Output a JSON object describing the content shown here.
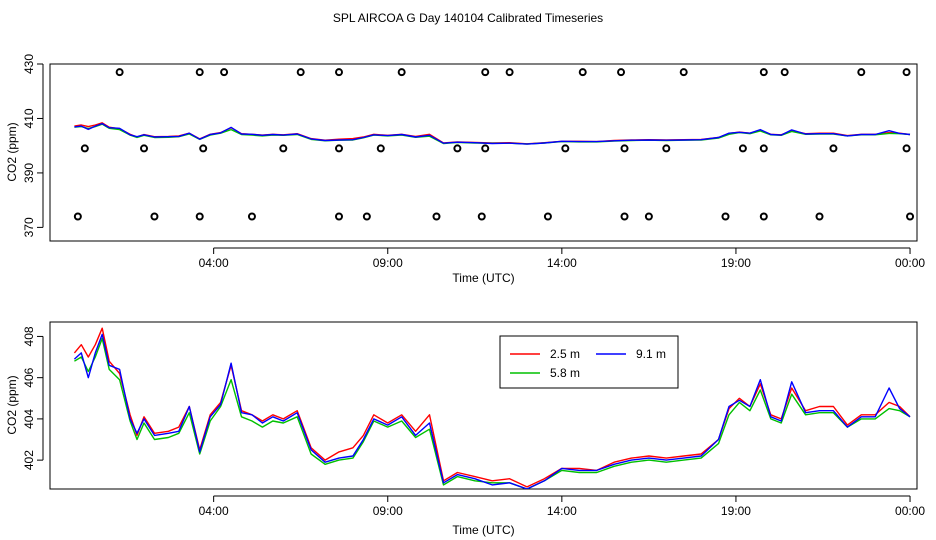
{
  "figure_title": "SPL AIRCOA G  Day 140104  Calibrated Timeseries",
  "chart_data": [
    {
      "type": "scatter+line",
      "panel": "top",
      "title": "",
      "xlabel": "Time (UTC)",
      "ylabel": "CO2 (ppm)",
      "x_unit": "hours UTC",
      "xlim": [
        -0.7,
        24.2
      ],
      "ylim": [
        365,
        430
      ],
      "x_ticks": [
        {
          "value": 4,
          "label": "04:00"
        },
        {
          "value": 9,
          "label": "09:00"
        },
        {
          "value": 14,
          "label": "14:00"
        },
        {
          "value": 19,
          "label": "19:00"
        },
        {
          "value": 24,
          "label": "00:00"
        }
      ],
      "y_ticks": [
        {
          "value": 370,
          "label": "370"
        },
        {
          "value": 390,
          "label": "390"
        },
        {
          "value": 410,
          "label": "410"
        },
        {
          "value": 430,
          "label": "430"
        }
      ],
      "series": [
        {
          "name": "2.5 m",
          "color": "#ff0000",
          "x": [
            0.0,
            0.2,
            0.4,
            0.6,
            0.8,
            1.0,
            1.3,
            1.6,
            1.8,
            2.0,
            2.3,
            2.7,
            3.0,
            3.3,
            3.6,
            3.9,
            4.2,
            4.5,
            4.8,
            5.1,
            5.4,
            5.7,
            6.0,
            6.4,
            6.8,
            7.2,
            7.6,
            8.0,
            8.3,
            8.6,
            9.0,
            9.4,
            9.8,
            10.2,
            10.6,
            11.0,
            11.5,
            12.0,
            12.5,
            13.0,
            13.5,
            14.0,
            14.5,
            15.0,
            15.5,
            16.0,
            16.5,
            17.0,
            17.5,
            18.0,
            18.5,
            18.8,
            19.1,
            19.4,
            19.7,
            20.0,
            20.3,
            20.6,
            21.0,
            21.4,
            21.8,
            22.2,
            22.6,
            23.0,
            23.4,
            23.7,
            24.0
          ],
          "y": [
            407.2,
            407.6,
            407.0,
            407.6,
            408.4,
            406.8,
            406.2,
            404.2,
            403.2,
            404.1,
            403.3,
            403.4,
            403.6,
            404.6,
            402.5,
            404.2,
            404.8,
            406.6,
            404.4,
            404.2,
            403.9,
            404.2,
            404.0,
            404.4,
            402.6,
            402.0,
            402.4,
            402.6,
            403.2,
            404.2,
            403.8,
            404.2,
            403.4,
            404.2,
            401.0,
            401.4,
            401.2,
            401.0,
            401.1,
            400.7,
            401.1,
            401.6,
            401.6,
            401.5,
            401.9,
            402.1,
            402.2,
            402.1,
            402.2,
            402.3,
            403.0,
            404.5,
            405.0,
            404.6,
            405.7,
            404.2,
            404.0,
            405.5,
            404.4,
            404.6,
            404.6,
            403.7,
            404.2,
            404.2,
            404.8,
            404.6,
            404.1
          ]
        },
        {
          "name": "5.8 m",
          "color": "#00c000",
          "x": [
            0.0,
            0.2,
            0.4,
            0.6,
            0.8,
            1.0,
            1.3,
            1.6,
            1.8,
            2.0,
            2.3,
            2.7,
            3.0,
            3.3,
            3.6,
            3.9,
            4.2,
            4.5,
            4.8,
            5.1,
            5.4,
            5.7,
            6.0,
            6.4,
            6.8,
            7.2,
            7.6,
            8.0,
            8.3,
            8.6,
            9.0,
            9.4,
            9.8,
            10.2,
            10.6,
            11.0,
            11.5,
            12.0,
            12.5,
            13.0,
            13.5,
            14.0,
            14.5,
            15.0,
            15.5,
            16.0,
            16.5,
            17.0,
            17.5,
            18.0,
            18.5,
            18.8,
            19.1,
            19.4,
            19.7,
            20.0,
            20.3,
            20.6,
            21.0,
            21.4,
            21.8,
            22.2,
            22.6,
            23.0,
            23.4,
            23.7,
            24.0
          ],
          "y": [
            406.8,
            407.0,
            406.3,
            407.0,
            407.9,
            406.4,
            405.9,
            403.9,
            403.0,
            403.8,
            403.0,
            403.1,
            403.3,
            404.3,
            402.3,
            403.9,
            404.6,
            405.9,
            404.1,
            403.9,
            403.6,
            403.9,
            403.8,
            404.1,
            402.3,
            401.8,
            402.0,
            402.1,
            402.9,
            403.9,
            403.6,
            403.9,
            403.1,
            403.5,
            400.8,
            401.2,
            401.0,
            400.9,
            400.9,
            400.6,
            401.0,
            401.5,
            401.4,
            401.4,
            401.7,
            401.9,
            402.0,
            401.9,
            402.0,
            402.1,
            402.8,
            404.2,
            404.8,
            404.4,
            405.4,
            404.0,
            403.8,
            405.2,
            404.2,
            404.3,
            404.3,
            403.6,
            404.0,
            404.0,
            404.5,
            404.4,
            404.1
          ]
        },
        {
          "name": "9.1 m",
          "color": "#0000ff",
          "x": [
            0.0,
            0.2,
            0.4,
            0.6,
            0.8,
            1.0,
            1.3,
            1.6,
            1.8,
            2.0,
            2.3,
            2.7,
            3.0,
            3.3,
            3.6,
            3.9,
            4.2,
            4.5,
            4.8,
            5.1,
            5.4,
            5.7,
            6.0,
            6.4,
            6.8,
            7.2,
            7.6,
            8.0,
            8.3,
            8.6,
            9.0,
            9.4,
            9.8,
            10.2,
            10.6,
            11.0,
            11.5,
            12.0,
            12.5,
            13.0,
            13.5,
            14.0,
            14.5,
            15.0,
            15.5,
            16.0,
            16.5,
            17.0,
            17.5,
            18.0,
            18.5,
            18.8,
            19.1,
            19.4,
            19.7,
            20.0,
            20.3,
            20.6,
            21.0,
            21.4,
            21.8,
            22.2,
            22.6,
            23.0,
            23.4,
            23.7,
            24.0
          ],
          "y": [
            406.9,
            407.2,
            406.0,
            407.2,
            408.1,
            406.6,
            406.4,
            404.0,
            403.3,
            404.0,
            403.2,
            403.3,
            403.4,
            404.6,
            402.4,
            404.1,
            404.7,
            406.7,
            404.3,
            404.2,
            403.8,
            404.1,
            403.9,
            404.3,
            402.5,
            401.9,
            402.1,
            402.2,
            403.0,
            404.0,
            403.7,
            404.1,
            403.2,
            403.8,
            400.9,
            401.3,
            401.1,
            400.8,
            400.9,
            400.6,
            401.0,
            401.6,
            401.5,
            401.5,
            401.8,
            402.0,
            402.1,
            402.0,
            402.1,
            402.2,
            403.0,
            404.6,
            404.9,
            404.6,
            405.9,
            404.1,
            403.9,
            405.8,
            404.3,
            404.4,
            404.4,
            403.6,
            404.1,
            404.1,
            405.5,
            404.5,
            404.1
          ]
        }
      ],
      "calibration_points": {
        "marker": "open-circle",
        "x": [
          1.3,
          3.6,
          4.3,
          6.5,
          7.6,
          9.4,
          11.8,
          12.5,
          14.6,
          15.7,
          17.5,
          19.8,
          20.4,
          22.6,
          23.9,
          0.3,
          2.0,
          3.7,
          6.0,
          7.6,
          8.8,
          11.0,
          11.8,
          14.1,
          15.8,
          17.0,
          19.2,
          19.8,
          21.8,
          23.9,
          0.1,
          2.3,
          3.6,
          5.1,
          7.6,
          8.4,
          10.4,
          11.7,
          13.6,
          15.8,
          16.5,
          18.7,
          19.8,
          21.4,
          24.0
        ],
        "y": [
          427,
          427,
          427,
          427,
          427,
          427,
          427,
          427,
          427,
          427,
          427,
          427,
          427,
          427,
          427,
          399,
          399,
          399,
          399,
          399,
          399,
          399,
          399,
          399,
          399,
          399,
          399,
          399,
          399,
          399,
          374,
          374,
          374,
          374,
          374,
          374,
          374,
          374,
          374,
          374,
          374,
          374,
          374,
          374,
          374
        ]
      }
    },
    {
      "type": "line",
      "panel": "bottom",
      "title": "",
      "xlabel": "Time (UTC)",
      "ylabel": "CO2 (ppm)",
      "x_unit": "hours UTC",
      "xlim": [
        -0.7,
        24.2
      ],
      "ylim": [
        400.6,
        408.7
      ],
      "x_ticks": [
        {
          "value": 4,
          "label": "04:00"
        },
        {
          "value": 9,
          "label": "09:00"
        },
        {
          "value": 14,
          "label": "14:00"
        },
        {
          "value": 19,
          "label": "19:00"
        },
        {
          "value": 24,
          "label": "00:00"
        }
      ],
      "y_ticks": [
        {
          "value": 402,
          "label": "402"
        },
        {
          "value": 404,
          "label": "404"
        },
        {
          "value": 406,
          "label": "406"
        },
        {
          "value": 408,
          "label": "408"
        }
      ],
      "legend": {
        "placement": "top-right",
        "entries": [
          {
            "name": "2.5 m",
            "color": "#ff0000"
          },
          {
            "name": "9.1 m",
            "color": "#0000ff"
          },
          {
            "name": "5.8 m",
            "color": "#00c000"
          }
        ]
      },
      "series": [
        {
          "name": "2.5 m",
          "color": "#ff0000",
          "x": [
            0.0,
            0.2,
            0.4,
            0.6,
            0.8,
            1.0,
            1.3,
            1.6,
            1.8,
            2.0,
            2.3,
            2.7,
            3.0,
            3.3,
            3.6,
            3.9,
            4.2,
            4.5,
            4.8,
            5.1,
            5.4,
            5.7,
            6.0,
            6.4,
            6.8,
            7.2,
            7.6,
            8.0,
            8.3,
            8.6,
            9.0,
            9.4,
            9.8,
            10.2,
            10.6,
            11.0,
            11.5,
            12.0,
            12.5,
            13.0,
            13.5,
            14.0,
            14.5,
            15.0,
            15.5,
            16.0,
            16.5,
            17.0,
            17.5,
            18.0,
            18.5,
            18.8,
            19.1,
            19.4,
            19.7,
            20.0,
            20.3,
            20.6,
            21.0,
            21.4,
            21.8,
            22.2,
            22.6,
            23.0,
            23.4,
            23.7,
            24.0
          ],
          "y": [
            407.2,
            407.6,
            407.0,
            407.6,
            408.4,
            406.8,
            406.2,
            404.2,
            403.2,
            404.1,
            403.3,
            403.4,
            403.6,
            404.6,
            402.5,
            404.2,
            404.8,
            406.6,
            404.4,
            404.2,
            403.9,
            404.2,
            404.0,
            404.4,
            402.6,
            402.0,
            402.4,
            402.6,
            403.2,
            404.2,
            403.8,
            404.2,
            403.4,
            404.2,
            401.0,
            401.4,
            401.2,
            401.0,
            401.1,
            400.7,
            401.1,
            401.6,
            401.6,
            401.5,
            401.9,
            402.1,
            402.2,
            402.1,
            402.2,
            402.3,
            403.0,
            404.5,
            405.0,
            404.6,
            405.7,
            404.2,
            404.0,
            405.5,
            404.4,
            404.6,
            404.6,
            403.7,
            404.2,
            404.2,
            404.8,
            404.6,
            404.1
          ]
        },
        {
          "name": "5.8 m",
          "color": "#00c000",
          "x": [
            0.0,
            0.2,
            0.4,
            0.6,
            0.8,
            1.0,
            1.3,
            1.6,
            1.8,
            2.0,
            2.3,
            2.7,
            3.0,
            3.3,
            3.6,
            3.9,
            4.2,
            4.5,
            4.8,
            5.1,
            5.4,
            5.7,
            6.0,
            6.4,
            6.8,
            7.2,
            7.6,
            8.0,
            8.3,
            8.6,
            9.0,
            9.4,
            9.8,
            10.2,
            10.6,
            11.0,
            11.5,
            12.0,
            12.5,
            13.0,
            13.5,
            14.0,
            14.5,
            15.0,
            15.5,
            16.0,
            16.5,
            17.0,
            17.5,
            18.0,
            18.5,
            18.8,
            19.1,
            19.4,
            19.7,
            20.0,
            20.3,
            20.6,
            21.0,
            21.4,
            21.8,
            22.2,
            22.6,
            23.0,
            23.4,
            23.7,
            24.0
          ],
          "y": [
            406.8,
            407.0,
            406.3,
            407.0,
            407.9,
            406.4,
            405.9,
            403.9,
            403.0,
            403.8,
            403.0,
            403.1,
            403.3,
            404.3,
            402.3,
            403.9,
            404.6,
            405.9,
            404.1,
            403.9,
            403.6,
            403.9,
            403.8,
            404.1,
            402.3,
            401.8,
            402.0,
            402.1,
            402.9,
            403.9,
            403.6,
            403.9,
            403.1,
            403.5,
            400.8,
            401.2,
            401.0,
            400.9,
            400.9,
            400.6,
            401.0,
            401.5,
            401.4,
            401.4,
            401.7,
            401.9,
            402.0,
            401.9,
            402.0,
            402.1,
            402.8,
            404.2,
            404.8,
            404.4,
            405.4,
            404.0,
            403.8,
            405.2,
            404.2,
            404.3,
            404.3,
            403.6,
            404.0,
            404.0,
            404.5,
            404.4,
            404.1
          ]
        },
        {
          "name": "9.1 m",
          "color": "#0000ff",
          "x": [
            0.0,
            0.2,
            0.4,
            0.6,
            0.8,
            1.0,
            1.3,
            1.6,
            1.8,
            2.0,
            2.3,
            2.7,
            3.0,
            3.3,
            3.6,
            3.9,
            4.2,
            4.5,
            4.8,
            5.1,
            5.4,
            5.7,
            6.0,
            6.4,
            6.8,
            7.2,
            7.6,
            8.0,
            8.3,
            8.6,
            9.0,
            9.4,
            9.8,
            10.2,
            10.6,
            11.0,
            11.5,
            12.0,
            12.5,
            13.0,
            13.5,
            14.0,
            14.5,
            15.0,
            15.5,
            16.0,
            16.5,
            17.0,
            17.5,
            18.0,
            18.5,
            18.8,
            19.1,
            19.4,
            19.7,
            20.0,
            20.3,
            20.6,
            21.0,
            21.4,
            21.8,
            22.2,
            22.6,
            23.0,
            23.4,
            23.7,
            24.0
          ],
          "y": [
            406.9,
            407.2,
            406.0,
            407.2,
            408.1,
            406.6,
            406.4,
            404.0,
            403.3,
            404.0,
            403.2,
            403.3,
            403.4,
            404.6,
            402.4,
            404.1,
            404.7,
            406.7,
            404.3,
            404.2,
            403.8,
            404.1,
            403.9,
            404.3,
            402.5,
            401.9,
            402.1,
            402.2,
            403.0,
            404.0,
            403.7,
            404.1,
            403.2,
            403.8,
            400.9,
            401.3,
            401.1,
            400.8,
            400.9,
            400.6,
            401.0,
            401.6,
            401.5,
            401.5,
            401.8,
            402.0,
            402.1,
            402.0,
            402.1,
            402.2,
            403.0,
            404.6,
            404.9,
            404.6,
            405.9,
            404.1,
            403.9,
            405.8,
            404.3,
            404.4,
            404.4,
            403.6,
            404.1,
            404.1,
            405.5,
            404.5,
            404.1
          ]
        }
      ]
    }
  ]
}
